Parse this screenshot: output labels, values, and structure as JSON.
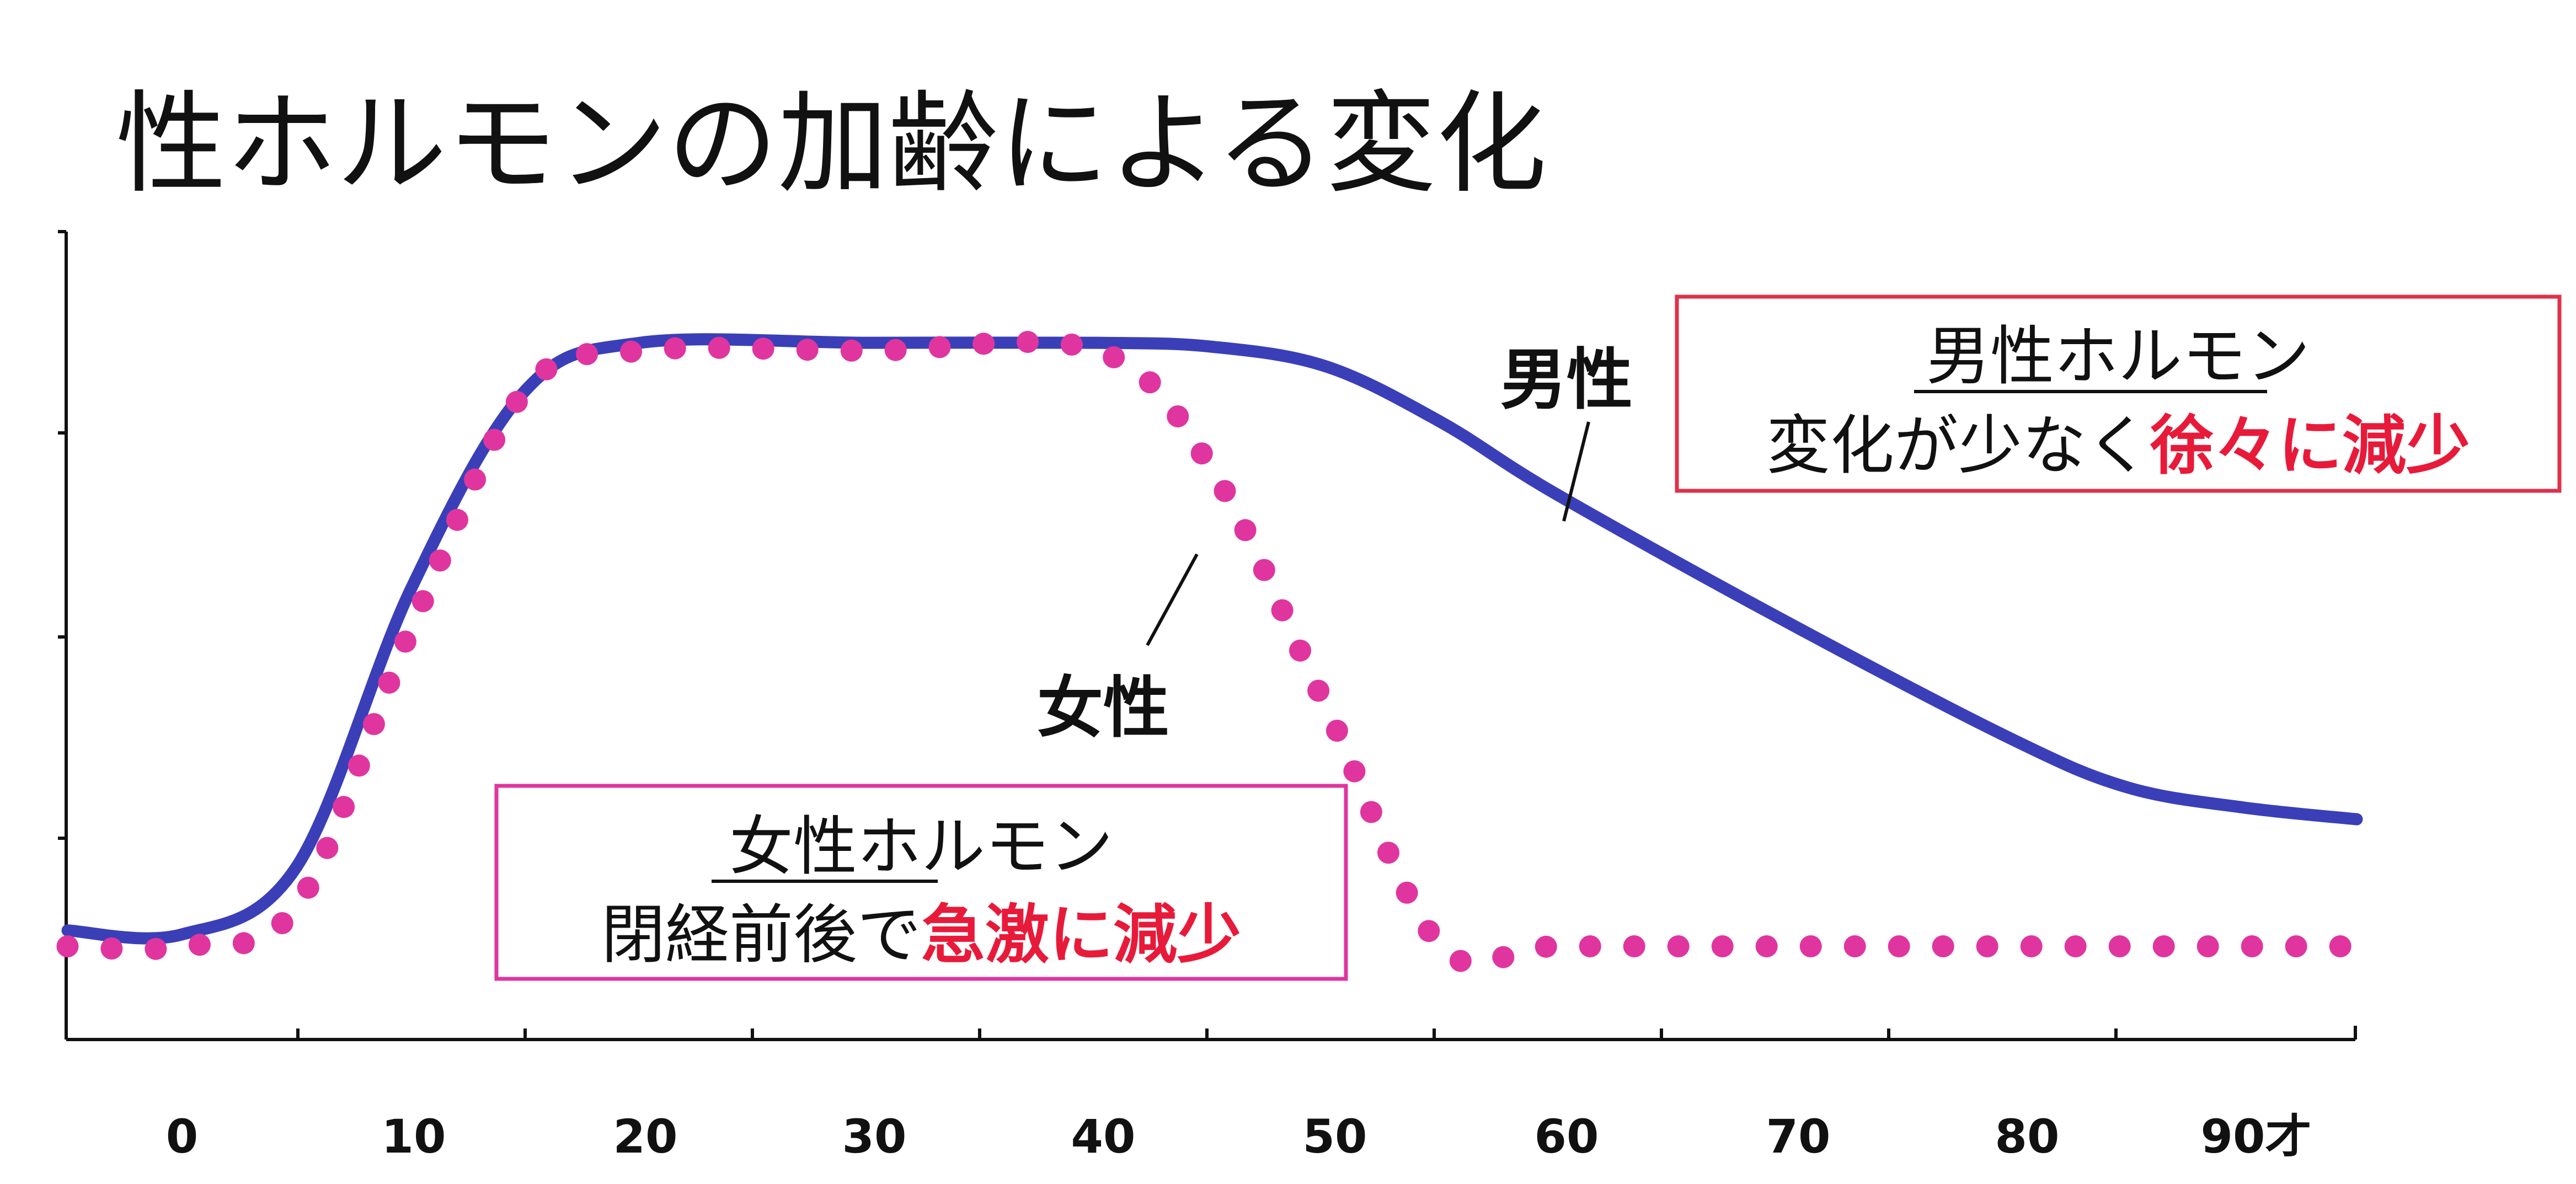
{
  "title": "性ホルモンの加齢による変化",
  "colors": {
    "male_line": "#3a3fb8",
    "female_dots": "#e0359f",
    "highlight_text": "#e81a3a",
    "male_box_border": "#e0304a",
    "female_box_border": "#e0359f",
    "axis": "#111111"
  },
  "chart_data": {
    "type": "line",
    "xlabel": "",
    "ylabel": "",
    "x_ticks": [
      "0",
      "10",
      "20",
      "30",
      "40",
      "50",
      "60",
      "70",
      "80",
      "90才"
    ],
    "y_ticks_shown": false,
    "series": [
      {
        "name": "男性",
        "style": "solid-line",
        "points": [
          [
            -5,
            1.2
          ],
          [
            0,
            1.15
          ],
          [
            5,
            2.0
          ],
          [
            10,
            5.5
          ],
          [
            15,
            8.0
          ],
          [
            20,
            8.6
          ],
          [
            30,
            8.6
          ],
          [
            40,
            8.6
          ],
          [
            45,
            8.55
          ],
          [
            50,
            8.3
          ],
          [
            55,
            7.6
          ],
          [
            60,
            6.7
          ],
          [
            70,
            5.1
          ],
          [
            80,
            3.6
          ],
          [
            85,
            3.0
          ],
          [
            90,
            2.75
          ],
          [
            95,
            2.6
          ]
        ]
      },
      {
        "name": "女性",
        "style": "dotted",
        "points": [
          [
            -5,
            1.0
          ],
          [
            0,
            1.0
          ],
          [
            5,
            1.5
          ],
          [
            10,
            5.0
          ],
          [
            15,
            8.0
          ],
          [
            20,
            8.5
          ],
          [
            30,
            8.5
          ],
          [
            40,
            8.5
          ],
          [
            45,
            7.0
          ],
          [
            50,
            4.0
          ],
          [
            55,
            1.0
          ],
          [
            60,
            1.0
          ],
          [
            70,
            1.0
          ],
          [
            80,
            1.0
          ],
          [
            90,
            1.0
          ],
          [
            95,
            1.0
          ]
        ]
      }
    ],
    "annotations": {
      "male_box": {
        "heading": "男性ホルモン",
        "line_plain": "変化が少なく",
        "line_emphasis": "徐々に減少"
      },
      "female_box": {
        "heading": "女性ホルモン",
        "line_plain": "閉経前後で",
        "line_emphasis": "急激に減少"
      }
    }
  }
}
